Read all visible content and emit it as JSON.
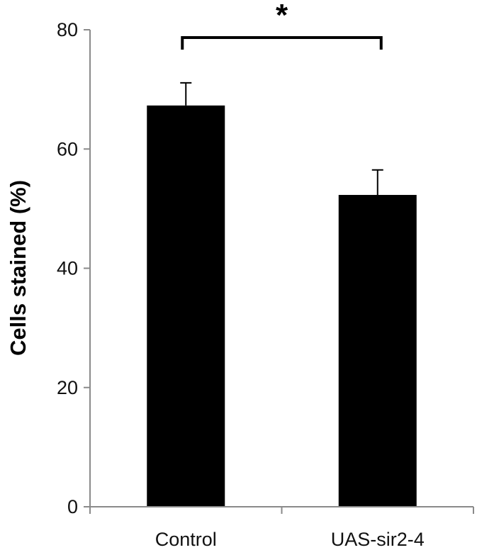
{
  "chart_data": {
    "type": "bar",
    "categories": [
      "Control",
      "UAS-sir2-4"
    ],
    "values": [
      67.3,
      52.3
    ],
    "error_upper": [
      3.8,
      4.2
    ],
    "ylabel": "Cells stained (%)",
    "ylim": [
      0,
      80
    ],
    "yticks": [
      0,
      20,
      40,
      60,
      80
    ],
    "grid": false,
    "bar_color": "#000000",
    "significance": {
      "pair": [
        0,
        1
      ],
      "label": "*"
    }
  }
}
